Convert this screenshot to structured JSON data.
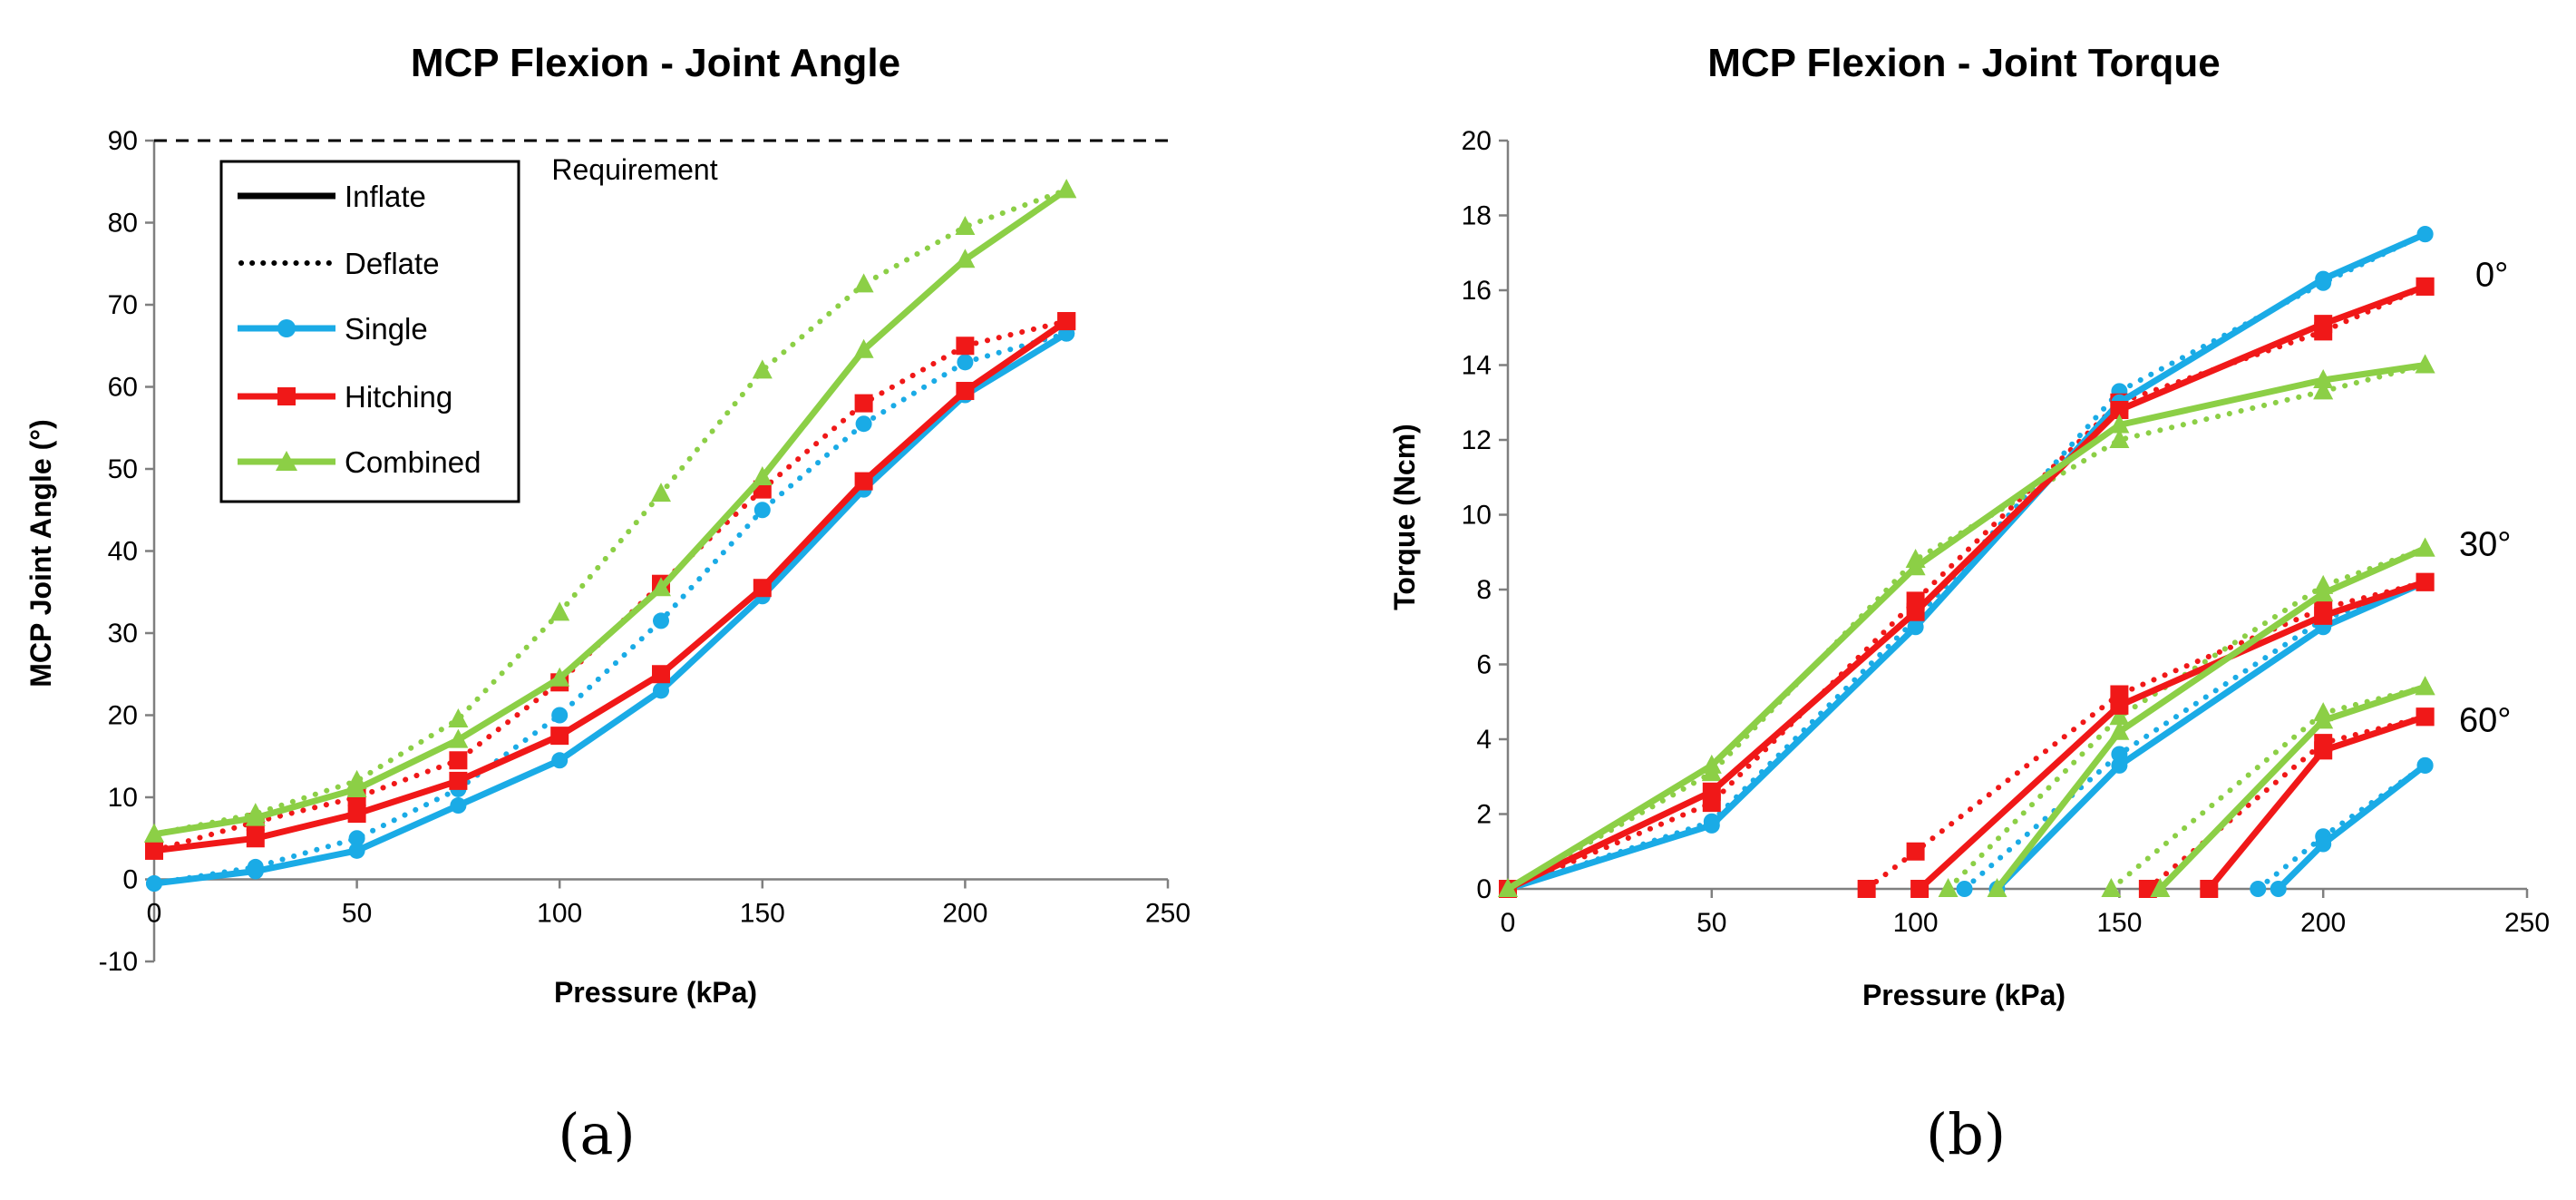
{
  "colors": {
    "single": "#1aabe6",
    "hitching": "#f01818",
    "combined": "#8ccf46",
    "axis": "#7f7f7f"
  },
  "panels": {
    "a": "(a)",
    "b": "(b)"
  },
  "chart_data": [
    {
      "type": "line",
      "title": "MCP Flexion - Joint Angle",
      "xlabel": "Pressure (kPa)",
      "ylabel": "MCP Joint Angle (°)",
      "xlim": [
        0,
        250
      ],
      "ylim": [
        -10,
        90
      ],
      "xticks": [
        "0",
        "50",
        "100",
        "150",
        "200",
        "250"
      ],
      "yticks": [
        "-10",
        "0",
        "10",
        "20",
        "30",
        "40",
        "50",
        "60",
        "70",
        "80",
        "90"
      ],
      "requirement": {
        "value": 90,
        "label": "Requirement"
      },
      "legend": {
        "placement": "top-left",
        "entries": [
          "Inflate",
          "Deflate",
          "Single",
          "Hitching",
          "Combined"
        ]
      },
      "series": [
        {
          "name": "Single Inflate",
          "group": "single",
          "style": "solid",
          "marker": "circle",
          "x": [
            0,
            25,
            50,
            75,
            100,
            125,
            150,
            175,
            200,
            225
          ],
          "y": [
            -0.5,
            1,
            3.5,
            9,
            14.5,
            23,
            34.5,
            47.5,
            59,
            66.5
          ]
        },
        {
          "name": "Single Deflate",
          "group": "single",
          "style": "dotted",
          "marker": "circle",
          "x": [
            0,
            25,
            50,
            75,
            100,
            125,
            150,
            175,
            200,
            225
          ],
          "y": [
            -0.5,
            1.5,
            5,
            11,
            20,
            31.5,
            45,
            55.5,
            63,
            66.5
          ]
        },
        {
          "name": "Hitching Inflate",
          "group": "hitching",
          "style": "solid",
          "marker": "square",
          "x": [
            0,
            25,
            50,
            75,
            100,
            125,
            150,
            175,
            200,
            225
          ],
          "y": [
            3.5,
            5,
            8,
            12,
            17.5,
            25,
            35.5,
            48.5,
            59.5,
            68
          ]
        },
        {
          "name": "Hitching Deflate",
          "group": "hitching",
          "style": "dotted",
          "marker": "square",
          "x": [
            0,
            25,
            50,
            75,
            100,
            125,
            150,
            175,
            200,
            225
          ],
          "y": [
            3.5,
            7,
            10,
            14.5,
            24,
            36,
            47.5,
            58,
            65,
            68
          ]
        },
        {
          "name": "Combined Inflate",
          "group": "combined",
          "style": "solid",
          "marker": "triangle",
          "x": [
            0,
            25,
            50,
            75,
            100,
            125,
            150,
            175,
            200,
            225
          ],
          "y": [
            5.5,
            7.5,
            11,
            17,
            24.5,
            35.5,
            49,
            64.5,
            75.5,
            84
          ]
        },
        {
          "name": "Combined Deflate",
          "group": "combined",
          "style": "dotted",
          "marker": "triangle",
          "x": [
            0,
            25,
            50,
            75,
            100,
            125,
            150,
            175,
            200,
            225
          ],
          "y": [
            5.5,
            8,
            12,
            19.5,
            32.5,
            47,
            62,
            72.5,
            79.5,
            84
          ]
        }
      ]
    },
    {
      "type": "line",
      "title": "MCP Flexion - Joint Torque",
      "xlabel": "Pressure (kPa)",
      "ylabel": "Torque (Ncm)",
      "xlim": [
        0,
        250
      ],
      "ylim": [
        0,
        20
      ],
      "xticks": [
        "0",
        "50",
        "100",
        "150",
        "200",
        "250"
      ],
      "yticks": [
        "0",
        "2",
        "4",
        "6",
        "8",
        "10",
        "12",
        "14",
        "16",
        "18",
        "20"
      ],
      "angle_labels": [
        {
          "text": "0°",
          "y": 16.4
        },
        {
          "text": "30°",
          "y": 9.2
        },
        {
          "text": "60°",
          "y": 4.5
        }
      ],
      "series": [
        {
          "name": "Single Inflate 0°",
          "group": "single",
          "style": "solid",
          "marker": "circle",
          "x": [
            0,
            50,
            100,
            150,
            200,
            225
          ],
          "y": [
            0,
            1.7,
            7,
            13,
            16.3,
            17.5
          ]
        },
        {
          "name": "Single Deflate 0°",
          "group": "single",
          "style": "dotted",
          "marker": "circle",
          "x": [
            0,
            50,
            100,
            150,
            200,
            225
          ],
          "y": [
            0,
            1.8,
            7.2,
            13.3,
            16.2,
            17.5
          ]
        },
        {
          "name": "Hitching Inflate 0°",
          "group": "hitching",
          "style": "solid",
          "marker": "square",
          "x": [
            0,
            50,
            100,
            150,
            200,
            225
          ],
          "y": [
            0,
            2.6,
            7.4,
            12.8,
            15.1,
            16.1
          ]
        },
        {
          "name": "Hitching Deflate 0°",
          "group": "hitching",
          "style": "dotted",
          "marker": "square",
          "x": [
            0,
            50,
            100,
            150,
            200,
            225
          ],
          "y": [
            0,
            2.3,
            7.7,
            13,
            14.9,
            16.1
          ]
        },
        {
          "name": "Combined Inflate 0°",
          "group": "combined",
          "style": "solid",
          "marker": "triangle",
          "x": [
            0,
            50,
            100,
            150,
            200,
            225
          ],
          "y": [
            0,
            3.3,
            8.6,
            12.4,
            13.6,
            14
          ]
        },
        {
          "name": "Combined Deflate 0°",
          "group": "combined",
          "style": "dotted",
          "marker": "triangle",
          "x": [
            0,
            50,
            100,
            150,
            200,
            225
          ],
          "y": [
            0,
            3.1,
            8.8,
            12,
            13.3,
            14
          ]
        },
        {
          "name": "Single Inflate 30°",
          "group": "single",
          "style": "solid",
          "marker": "circle",
          "x": [
            120,
            150,
            200,
            225
          ],
          "y": [
            0,
            3.3,
            7,
            8.2
          ]
        },
        {
          "name": "Single Deflate 30°",
          "group": "single",
          "style": "dotted",
          "marker": "circle",
          "x": [
            112,
            150,
            200,
            225
          ],
          "y": [
            0,
            3.6,
            7.2,
            8.2
          ]
        },
        {
          "name": "Hitching Inflate 30°",
          "group": "hitching",
          "style": "solid",
          "marker": "square",
          "x": [
            101,
            150,
            200,
            225
          ],
          "y": [
            0,
            4.9,
            7.3,
            8.2
          ]
        },
        {
          "name": "Hitching Deflate 30°",
          "group": "hitching",
          "style": "dotted",
          "marker": "square",
          "x": [
            88,
            100,
            150,
            200,
            225
          ],
          "y": [
            0,
            1,
            5.2,
            7.5,
            8.2
          ]
        },
        {
          "name": "Combined Inflate 30°",
          "group": "combined",
          "style": "solid",
          "marker": "triangle",
          "x": [
            120,
            150,
            200,
            225
          ],
          "y": [
            0,
            4.2,
            7.9,
            9.1
          ]
        },
        {
          "name": "Combined Deflate 30°",
          "group": "combined",
          "style": "dotted",
          "marker": "triangle",
          "x": [
            108,
            150,
            200,
            225
          ],
          "y": [
            0,
            4.6,
            8.1,
            9.1
          ]
        },
        {
          "name": "Single Inflate 60°",
          "group": "single",
          "style": "solid",
          "marker": "circle",
          "x": [
            189,
            200,
            225
          ],
          "y": [
            0,
            1.2,
            3.3
          ]
        },
        {
          "name": "Single Deflate 60°",
          "group": "single",
          "style": "dotted",
          "marker": "circle",
          "x": [
            184,
            200,
            225
          ],
          "y": [
            0,
            1.4,
            3.3
          ]
        },
        {
          "name": "Hitching Inflate 60°",
          "group": "hitching",
          "style": "solid",
          "marker": "square",
          "x": [
            172,
            200,
            225
          ],
          "y": [
            0,
            3.7,
            4.6
          ]
        },
        {
          "name": "Hitching Deflate 60°",
          "group": "hitching",
          "style": "dotted",
          "marker": "square",
          "x": [
            157,
            200,
            225
          ],
          "y": [
            0,
            3.9,
            4.6
          ]
        },
        {
          "name": "Combined Inflate 60°",
          "group": "combined",
          "style": "solid",
          "marker": "triangle",
          "x": [
            160,
            200,
            225
          ],
          "y": [
            0,
            4.5,
            5.4
          ]
        },
        {
          "name": "Combined Deflate 60°",
          "group": "combined",
          "style": "dotted",
          "marker": "triangle",
          "x": [
            148,
            200,
            225
          ],
          "y": [
            0,
            4.7,
            5.4
          ]
        }
      ]
    }
  ]
}
